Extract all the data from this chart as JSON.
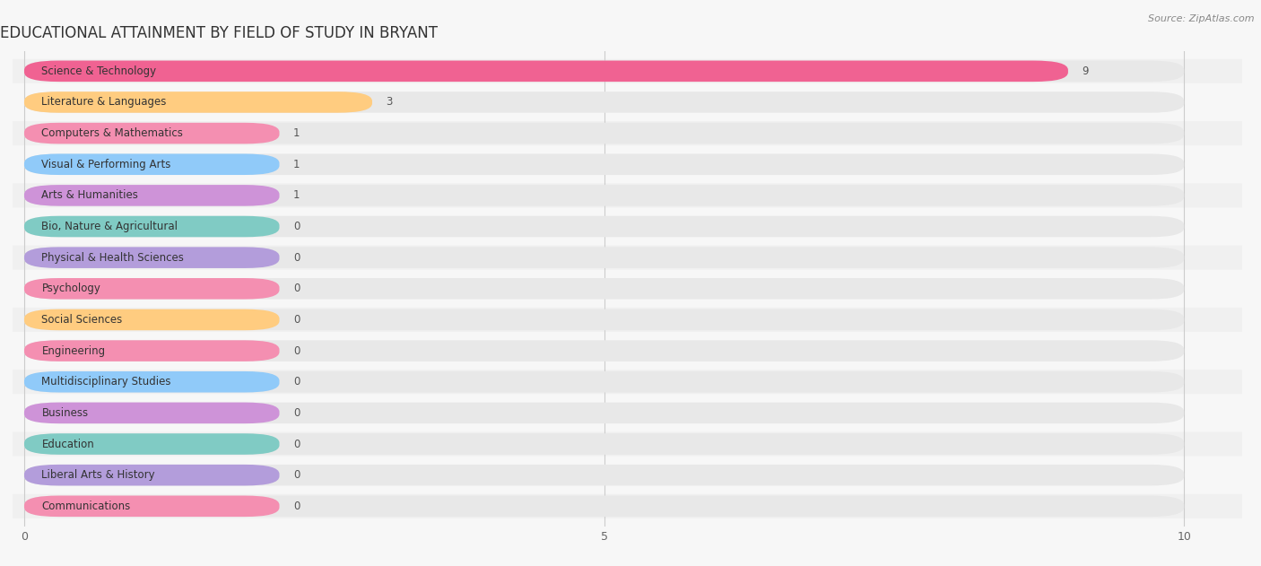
{
  "title": "EDUCATIONAL ATTAINMENT BY FIELD OF STUDY IN BRYANT",
  "source": "Source: ZipAtlas.com",
  "categories": [
    "Science & Technology",
    "Literature & Languages",
    "Computers & Mathematics",
    "Visual & Performing Arts",
    "Arts & Humanities",
    "Bio, Nature & Agricultural",
    "Physical & Health Sciences",
    "Psychology",
    "Social Sciences",
    "Engineering",
    "Multidisciplinary Studies",
    "Business",
    "Education",
    "Liberal Arts & History",
    "Communications"
  ],
  "values": [
    9,
    3,
    1,
    1,
    1,
    0,
    0,
    0,
    0,
    0,
    0,
    0,
    0,
    0,
    0
  ],
  "bar_colors": [
    "#F06292",
    "#FFCC80",
    "#F48FB1",
    "#90CAF9",
    "#CE93D8",
    "#80CBC4",
    "#B39DDB",
    "#F48FB1",
    "#FFCC80",
    "#F48FB1",
    "#90CAF9",
    "#CE93D8",
    "#80CBC4",
    "#B39DDB",
    "#F48FB1"
  ],
  "min_bar_width": 2.2,
  "xlim_max": 10,
  "xticks": [
    0,
    5,
    10
  ],
  "background_color": "#f7f7f7",
  "bar_bg_color": "#e8e8e8",
  "title_fontsize": 12,
  "label_fontsize": 8.5,
  "value_fontsize": 8.5,
  "source_fontsize": 8
}
